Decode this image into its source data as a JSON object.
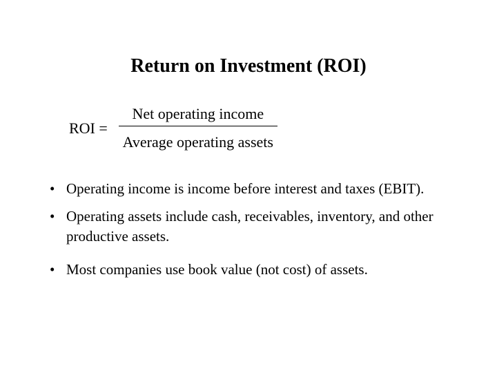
{
  "title": "Return on Investment (ROI)",
  "formula": {
    "lhs": "ROI =",
    "numerator": "Net operating income",
    "denominator": "Average operating assets"
  },
  "bullets": {
    "item1": "Operating income is income before interest and taxes (EBIT).",
    "item2": "Operating assets include cash, receivables, inventory, and other productive assets.",
    "item3": "Most companies use book value (not cost) of assets."
  },
  "colors": {
    "background": "#ffffff",
    "text": "#000000"
  },
  "typography": {
    "font_family": "Times New Roman",
    "title_fontsize": 28,
    "title_weight": "bold",
    "body_fontsize": 21
  }
}
